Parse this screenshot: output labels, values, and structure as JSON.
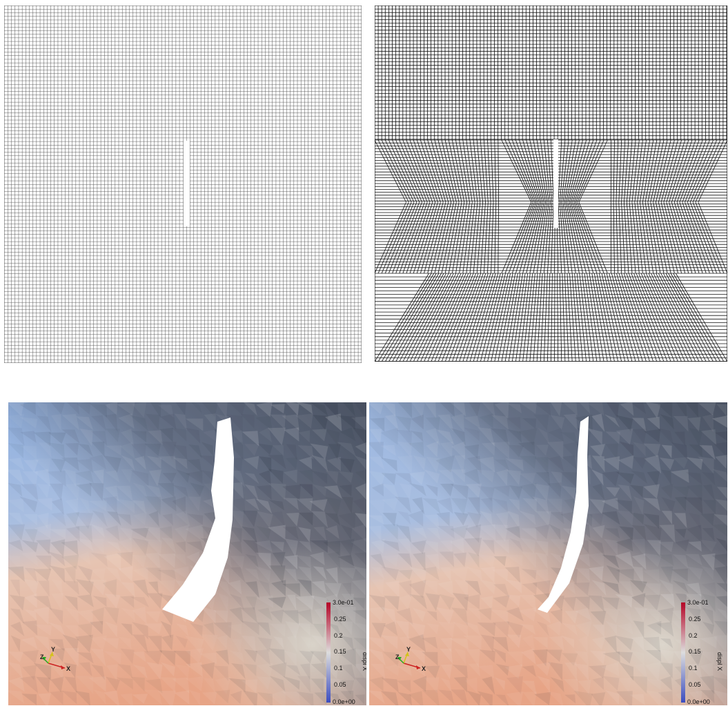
{
  "panels": {
    "top_left": {
      "kind": "mesh",
      "variant": "uniform"
    },
    "top_right": {
      "kind": "mesh",
      "variant": "refined"
    },
    "bottom_left": {
      "kind": "displacement-field"
    },
    "bottom_right": {
      "kind": "displacement-field"
    }
  },
  "colorbar": {
    "title": "displ X",
    "max_label": "3.0e-01",
    "min_label": "0.0e+00",
    "tick_labels": [
      "0.25",
      "0.2",
      "0.15",
      "0.1",
      "0.05"
    ],
    "colors": {
      "low": "#3b4cc0",
      "mid": "#dddddd",
      "high": "#b40426"
    }
  },
  "axes_triad": {
    "x_label": "X",
    "y_label": "Y",
    "z_label": "Z",
    "colors": {
      "x": "#cc2222",
      "y": "#d4c21a",
      "z": "#22aa22"
    }
  },
  "field_colors": {
    "top_left": "#7f9fd6",
    "dark": "#4a5262",
    "bottom": "#e8a98c",
    "light": "#d8d2c8"
  },
  "mesh_color": "#333333"
}
